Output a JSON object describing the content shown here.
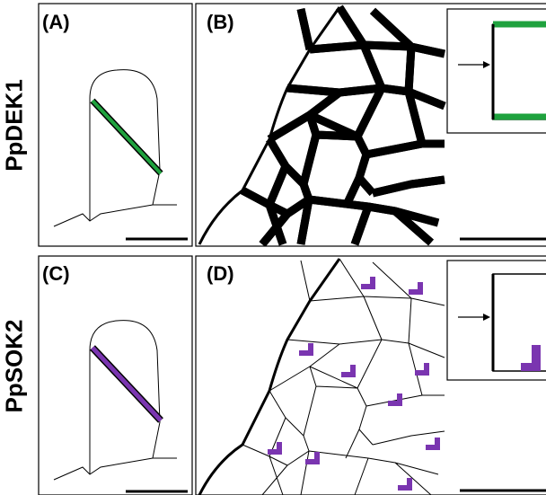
{
  "rows": [
    {
      "label": "PpDEK1",
      "accent": "#1fa23e"
    },
    {
      "label": "PpSOK2",
      "accent": "#7a35b0"
    }
  ],
  "panels": {
    "A": "(A)",
    "B": "(B)",
    "C": "(C)",
    "D": "(D)"
  },
  "icons": {
    "arrow": "right-arrow-icon",
    "scale_bar": "scale-bar"
  }
}
